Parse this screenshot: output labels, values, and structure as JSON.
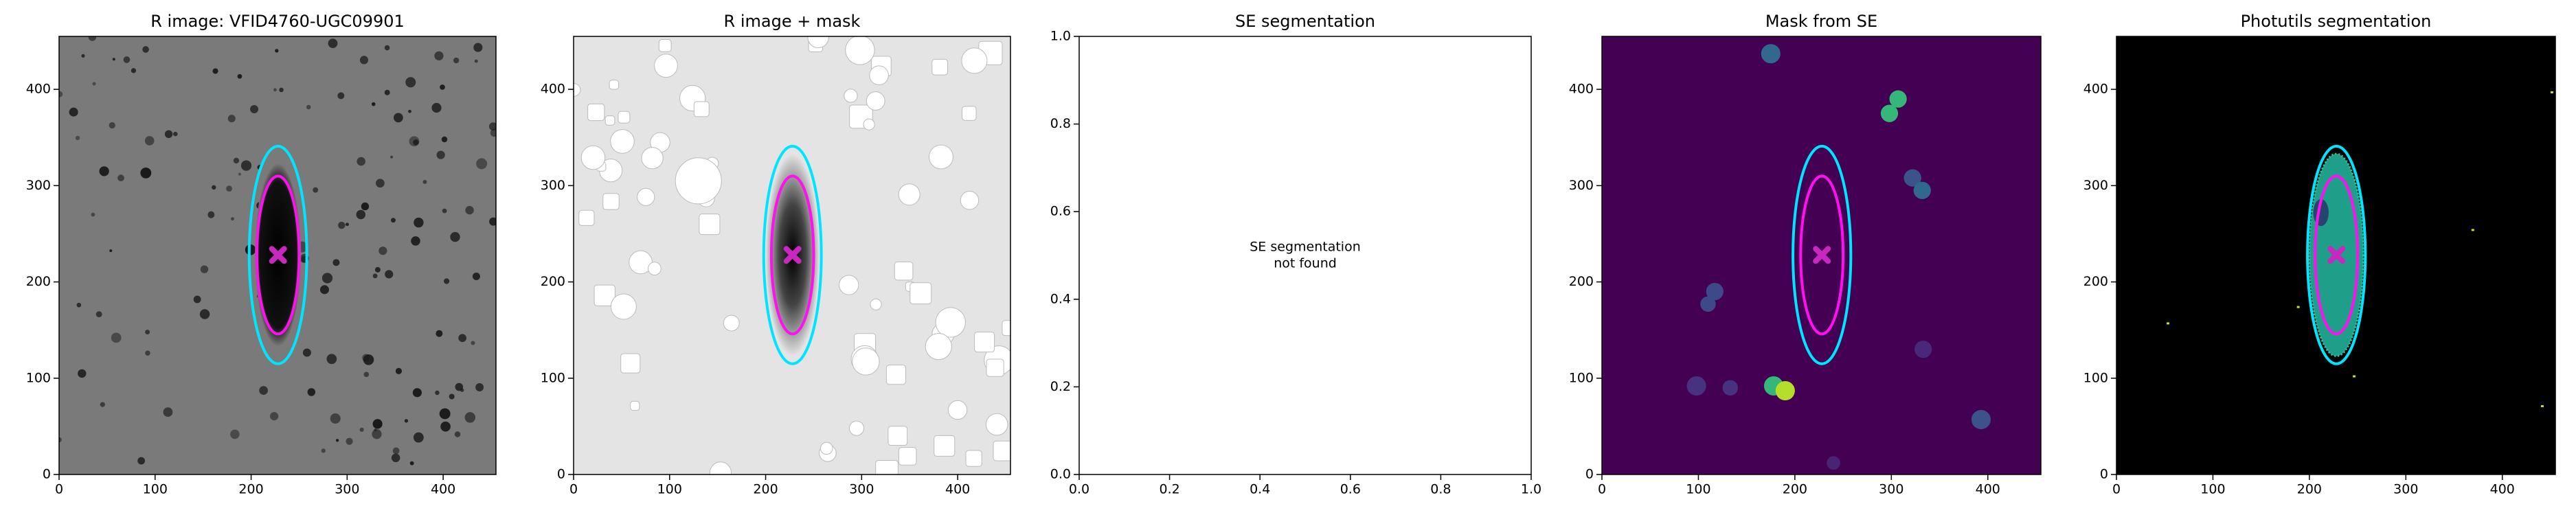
{
  "chart_data": [
    {
      "type": "image",
      "title": "R image: VFID4760-UGC09901",
      "background": "#7a7a7a",
      "xlim": [
        0,
        455
      ],
      "ylim": [
        0,
        455
      ],
      "xticks": [
        0,
        100,
        200,
        300,
        400
      ],
      "yticks": [
        0,
        100,
        200,
        300,
        400
      ],
      "ellipses": [
        {
          "cx": 228,
          "cy": 228,
          "rx": 30,
          "ry": 113,
          "color": "#00e5ff"
        },
        {
          "cx": 228,
          "cy": 228,
          "rx": 22,
          "ry": 82,
          "color": "#ff10f0"
        }
      ],
      "marker": {
        "x": 228,
        "y": 228,
        "color": "#c828c0"
      }
    },
    {
      "type": "image",
      "title": "R image + mask",
      "background": "#e4e4e4",
      "xlim": [
        0,
        455
      ],
      "ylim": [
        0,
        455
      ],
      "xticks": [
        0,
        100,
        200,
        300,
        400
      ],
      "yticks": [
        0,
        100,
        200,
        300,
        400
      ],
      "ellipses": [
        {
          "cx": 228,
          "cy": 228,
          "rx": 30,
          "ry": 113,
          "color": "#00e5ff"
        },
        {
          "cx": 228,
          "cy": 228,
          "rx": 22,
          "ry": 82,
          "color": "#ff10f0"
        }
      ],
      "marker": {
        "x": 228,
        "y": 228,
        "color": "#c828c0"
      }
    },
    {
      "type": "empty",
      "title": "SE segmentation",
      "background": "#ffffff",
      "xlim": [
        0,
        1
      ],
      "ylim": [
        0,
        1
      ],
      "xticks": [
        {
          "value": 0,
          "label": "0.0"
        },
        0.2,
        0.4,
        0.6,
        0.8,
        {
          "value": 1,
          "label": "1.0"
        }
      ],
      "yticks": [
        {
          "value": 0,
          "label": "0.0"
        },
        0.2,
        0.4,
        0.6,
        0.8,
        {
          "value": 1,
          "label": "1.0"
        }
      ],
      "annotation": [
        "SE segmentation",
        "not found"
      ]
    },
    {
      "type": "image",
      "title": "Mask from SE",
      "background": "#440154",
      "xlim": [
        0,
        455
      ],
      "ylim": [
        0,
        455
      ],
      "xticks": [
        0,
        100,
        200,
        300,
        400
      ],
      "yticks": [
        0,
        100,
        200,
        300,
        400
      ],
      "ellipses": [
        {
          "cx": 228,
          "cy": 228,
          "rx": 30,
          "ry": 113,
          "color": "#00e5ff"
        },
        {
          "cx": 228,
          "cy": 228,
          "rx": 22,
          "ry": 82,
          "color": "#ff10f0"
        }
      ],
      "marker": {
        "x": 228,
        "y": 228,
        "color": "#c828c0"
      }
    },
    {
      "type": "image",
      "title": "Photutils segmentation",
      "background": "#000000",
      "xlim": [
        0,
        455
      ],
      "ylim": [
        0,
        455
      ],
      "xticks": [
        0,
        100,
        200,
        300,
        400
      ],
      "yticks": [
        0,
        100,
        200,
        300,
        400
      ],
      "ellipses": [
        {
          "cx": 228,
          "cy": 228,
          "rx": 30,
          "ry": 113,
          "color": "#00e5ff"
        },
        {
          "cx": 228,
          "cy": 228,
          "rx": 22,
          "ry": 82,
          "color": "#ff10f0"
        }
      ],
      "marker": {
        "x": 228,
        "y": 228,
        "color": "#c828c0"
      }
    }
  ]
}
